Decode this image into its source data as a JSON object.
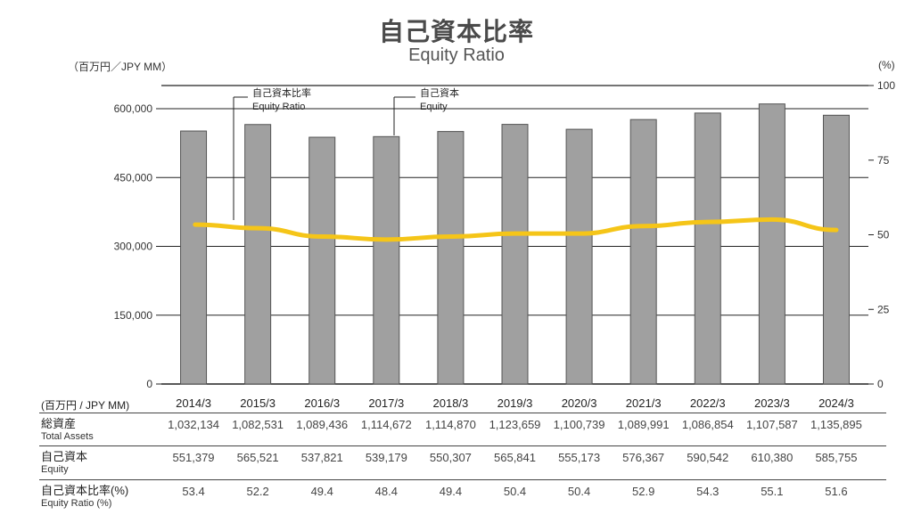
{
  "title": {
    "jp": "自己資本比率",
    "en": "Equity Ratio"
  },
  "units": {
    "left": "（百万円／JPY MM）",
    "right": "(%)",
    "table": "(百万円 / JPY MM)"
  },
  "callouts": {
    "ratio": {
      "jp": "自己資本比率",
      "en": "Equity Ratio"
    },
    "equity": {
      "jp": "自己資本",
      "en": "Equity"
    }
  },
  "chart_data": {
    "type": "bar",
    "categories": [
      "2014/3",
      "2015/3",
      "2016/3",
      "2017/3",
      "2018/3",
      "2019/3",
      "2020/3",
      "2021/3",
      "2022/3",
      "2023/3",
      "2024/3"
    ],
    "series": [
      {
        "name": "自己資本 Equity",
        "type": "bar",
        "axis": "left",
        "values": [
          551379,
          565521,
          537821,
          539179,
          550307,
          565841,
          555173,
          576367,
          590542,
          610380,
          585755
        ]
      },
      {
        "name": "自己資本比率 Equity Ratio",
        "type": "line",
        "axis": "right",
        "values": [
          53.4,
          52.2,
          49.4,
          48.4,
          49.4,
          50.4,
          50.4,
          52.9,
          54.3,
          55.1,
          51.6
        ]
      }
    ],
    "left_axis": {
      "min": 0,
      "max": 650000,
      "ticks": [
        "0",
        "150,000",
        "300,000",
        "450,000",
        "600,000"
      ],
      "tick_values": [
        0,
        150000,
        300000,
        450000,
        600000
      ]
    },
    "right_axis": {
      "min": 0,
      "max": 100,
      "ticks": [
        "0",
        "25",
        "50",
        "75",
        "100"
      ],
      "tick_values": [
        0,
        25,
        50,
        75,
        100
      ]
    },
    "colors": {
      "bar": "#a0a0a0",
      "bar_stroke": "#555555",
      "line": "#f5c518",
      "grid": "#222222"
    },
    "grid": true
  },
  "table": {
    "rows": [
      {
        "jp": "総資産",
        "en": "Total Assets",
        "values": [
          "1,032,134",
          "1,082,531",
          "1,089,436",
          "1,114,672",
          "1,114,870",
          "1,123,659",
          "1,100,739",
          "1,089,991",
          "1,086,854",
          "1,107,587",
          "1,135,895"
        ]
      },
      {
        "jp": "自己資本",
        "en": "Equity",
        "values": [
          "551,379",
          "565,521",
          "537,821",
          "539,179",
          "550,307",
          "565,841",
          "555,173",
          "576,367",
          "590,542",
          "610,380",
          "585,755"
        ]
      },
      {
        "jp": "自己資本比率(%)",
        "en": "Equity Ratio (%)",
        "values": [
          "53.4",
          "52.2",
          "49.4",
          "48.4",
          "49.4",
          "50.4",
          "50.4",
          "52.9",
          "54.3",
          "55.1",
          "51.6"
        ]
      }
    ]
  }
}
